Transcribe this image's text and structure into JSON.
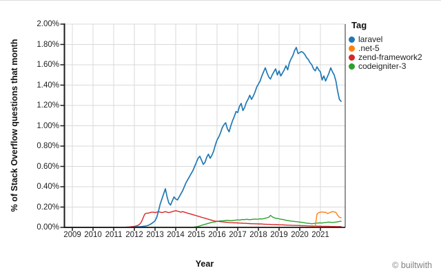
{
  "page": {
    "attribution": "© builtwith"
  },
  "chart_data": {
    "type": "line",
    "title": "",
    "xlabel": "Year",
    "ylabel": "% of Stack Overflow questions that month",
    "legend_title": "Tag",
    "legend_position": "right",
    "grid": true,
    "x_start": "2008-09",
    "x_end": "2022-01",
    "x_interval": "monthly",
    "x_tick_labels": [
      "2009",
      "2010",
      "2011",
      "2012",
      "2013",
      "2014",
      "2015",
      "2016",
      "2017",
      "2018",
      "2019",
      "2020",
      "2021"
    ],
    "y_tick_labels": [
      "0.00%",
      "0.20%",
      "0.40%",
      "0.60%",
      "0.80%",
      "1.00%",
      "1.20%",
      "1.40%",
      "1.60%",
      "1.80%",
      "2.00%"
    ],
    "ylim": [
      0,
      2.0
    ],
    "y_unit": "percent",
    "series": [
      {
        "name": "laravel",
        "color": "#1f77b4",
        "values": [
          0,
          0,
          0,
          0,
          0,
          0,
          0,
          0,
          0,
          0,
          0,
          0,
          0,
          0,
          0,
          0,
          0,
          0,
          0,
          0,
          0,
          0,
          0,
          0,
          0,
          0,
          0,
          0,
          0,
          0,
          0,
          0,
          0,
          0,
          0,
          0,
          0,
          0,
          0,
          0,
          0.004,
          0.005,
          0.006,
          0.007,
          0.008,
          0.01,
          0.012,
          0.015,
          0.02,
          0.028,
          0.038,
          0.05,
          0.065,
          0.1,
          0.16,
          0.23,
          0.28,
          0.33,
          0.38,
          0.3,
          0.24,
          0.22,
          0.26,
          0.3,
          0.28,
          0.27,
          0.3,
          0.33,
          0.36,
          0.4,
          0.44,
          0.47,
          0.5,
          0.53,
          0.56,
          0.6,
          0.64,
          0.68,
          0.7,
          0.66,
          0.62,
          0.64,
          0.69,
          0.72,
          0.68,
          0.71,
          0.75,
          0.81,
          0.86,
          0.89,
          0.93,
          0.98,
          1.01,
          1.03,
          0.97,
          0.94,
          1.0,
          1.05,
          1.09,
          1.14,
          1.13,
          1.19,
          1.22,
          1.15,
          1.18,
          1.23,
          1.26,
          1.3,
          1.26,
          1.29,
          1.33,
          1.38,
          1.41,
          1.44,
          1.49,
          1.53,
          1.57,
          1.52,
          1.48,
          1.46,
          1.5,
          1.53,
          1.56,
          1.5,
          1.54,
          1.49,
          1.52,
          1.55,
          1.59,
          1.55,
          1.62,
          1.66,
          1.69,
          1.74,
          1.77,
          1.71,
          1.72,
          1.73,
          1.72,
          1.7,
          1.67,
          1.65,
          1.62,
          1.6,
          1.56,
          1.54,
          1.58,
          1.55,
          1.53,
          1.45,
          1.49,
          1.44,
          1.48,
          1.52,
          1.57,
          1.53,
          1.5,
          1.44,
          1.34,
          1.26,
          1.24
        ]
      },
      {
        "name": ".net-5",
        "color": "#ff7f0e",
        "values": [
          0,
          0,
          0,
          0,
          0,
          0,
          0,
          0,
          0,
          0,
          0,
          0,
          0,
          0,
          0,
          0,
          0,
          0,
          0,
          0,
          0,
          0,
          0,
          0,
          0,
          0,
          0,
          0,
          0,
          0,
          0,
          0,
          0,
          0,
          0,
          0,
          0,
          0,
          0,
          0,
          0,
          0,
          0,
          0,
          0,
          0,
          0,
          0,
          0,
          0,
          0,
          0,
          0,
          0,
          0,
          0,
          0,
          0,
          0,
          0,
          0,
          0,
          0,
          0,
          0,
          0,
          0,
          0,
          0,
          0,
          0,
          0,
          0,
          0,
          0,
          0,
          0,
          0,
          0,
          0,
          0,
          0,
          0,
          0,
          0,
          0,
          0,
          0,
          0,
          0,
          0,
          0,
          0,
          0,
          0,
          0,
          0,
          0,
          0,
          0,
          0,
          0,
          0,
          0,
          0,
          0,
          0,
          0,
          0,
          0,
          0,
          0,
          0,
          0,
          0,
          0,
          0,
          0,
          0,
          0,
          0,
          0,
          0,
          0,
          0,
          0,
          0,
          0,
          0,
          0,
          0,
          0,
          0,
          0,
          0,
          0,
          0,
          0,
          0,
          0,
          0,
          0,
          0.002,
          0.003,
          0.005,
          0.01,
          0.13,
          0.145,
          0.15,
          0.152,
          0.148,
          0.15,
          0.137,
          0.142,
          0.15,
          0.155,
          0.152,
          0.148,
          0.12,
          0.1,
          0.095
        ]
      },
      {
        "name": "zend-framework2",
        "color": "#d62728",
        "values": [
          0,
          0,
          0,
          0,
          0,
          0,
          0,
          0,
          0,
          0,
          0,
          0,
          0,
          0,
          0,
          0,
          0,
          0,
          0,
          0,
          0,
          0,
          0,
          0,
          0,
          0,
          0,
          0,
          0,
          0,
          0,
          0,
          0,
          0.001,
          0.002,
          0.003,
          0.004,
          0.005,
          0.006,
          0.008,
          0.01,
          0.014,
          0.02,
          0.03,
          0.05,
          0.09,
          0.13,
          0.14,
          0.14,
          0.145,
          0.15,
          0.15,
          0.145,
          0.15,
          0.155,
          0.15,
          0.145,
          0.15,
          0.155,
          0.15,
          0.145,
          0.15,
          0.155,
          0.16,
          0.165,
          0.16,
          0.155,
          0.15,
          0.155,
          0.15,
          0.145,
          0.14,
          0.135,
          0.13,
          0.125,
          0.12,
          0.115,
          0.11,
          0.105,
          0.1,
          0.095,
          0.09,
          0.085,
          0.08,
          0.075,
          0.07,
          0.065,
          0.062,
          0.06,
          0.058,
          0.056,
          0.055,
          0.053,
          0.051,
          0.05,
          0.048,
          0.047,
          0.046,
          0.045,
          0.045,
          0.044,
          0.043,
          0.042,
          0.041,
          0.04,
          0.039,
          0.038,
          0.037,
          0.036,
          0.036,
          0.035,
          0.035,
          0.034,
          0.034,
          0.033,
          0.032,
          0.031,
          0.03,
          0.03,
          0.029,
          0.028,
          0.028,
          0.027,
          0.027,
          0.026,
          0.025,
          0.025,
          0.024,
          0.023,
          0.022,
          0.022,
          0.021,
          0.02,
          0.02,
          0.019,
          0.019,
          0.018,
          0.017,
          0.017,
          0.016,
          0.015,
          0.015,
          0.014,
          0.014,
          0.013,
          0.013,
          0.012,
          0.012,
          0.012,
          0.011,
          0.011,
          0.01,
          0.01,
          0.01,
          0.009,
          0.009,
          0.009,
          0.008,
          0.008,
          0.008,
          0.008
        ]
      },
      {
        "name": "codeigniter-3",
        "color": "#2ca02c",
        "values": [
          0,
          0,
          0,
          0,
          0,
          0,
          0,
          0,
          0,
          0,
          0,
          0,
          0,
          0,
          0,
          0,
          0,
          0,
          0,
          0,
          0,
          0,
          0,
          0,
          0,
          0,
          0,
          0,
          0,
          0,
          0,
          0,
          0,
          0,
          0,
          0,
          0,
          0,
          0,
          0,
          0,
          0,
          0,
          0,
          0,
          0,
          0,
          0,
          0,
          0,
          0,
          0,
          0,
          0,
          0,
          0,
          0,
          0,
          0,
          0,
          0,
          0,
          0,
          0,
          0,
          0,
          0,
          0,
          0,
          0,
          0,
          0,
          0,
          0,
          0,
          0.004,
          0.006,
          0.01,
          0.015,
          0.02,
          0.025,
          0.03,
          0.035,
          0.04,
          0.045,
          0.05,
          0.052,
          0.055,
          0.06,
          0.062,
          0.065,
          0.063,
          0.066,
          0.068,
          0.07,
          0.068,
          0.066,
          0.068,
          0.07,
          0.072,
          0.074,
          0.072,
          0.075,
          0.078,
          0.076,
          0.08,
          0.078,
          0.076,
          0.078,
          0.08,
          0.082,
          0.08,
          0.082,
          0.085,
          0.083,
          0.086,
          0.09,
          0.095,
          0.1,
          0.118,
          0.105,
          0.095,
          0.09,
          0.088,
          0.085,
          0.08,
          0.078,
          0.075,
          0.07,
          0.068,
          0.065,
          0.062,
          0.06,
          0.058,
          0.056,
          0.055,
          0.052,
          0.05,
          0.048,
          0.045,
          0.042,
          0.04,
          0.038,
          0.036,
          0.038,
          0.04,
          0.042,
          0.044,
          0.045,
          0.043,
          0.046,
          0.048,
          0.05,
          0.052,
          0.05,
          0.048,
          0.05,
          0.052,
          0.055,
          0.058,
          0.06
        ]
      }
    ]
  }
}
